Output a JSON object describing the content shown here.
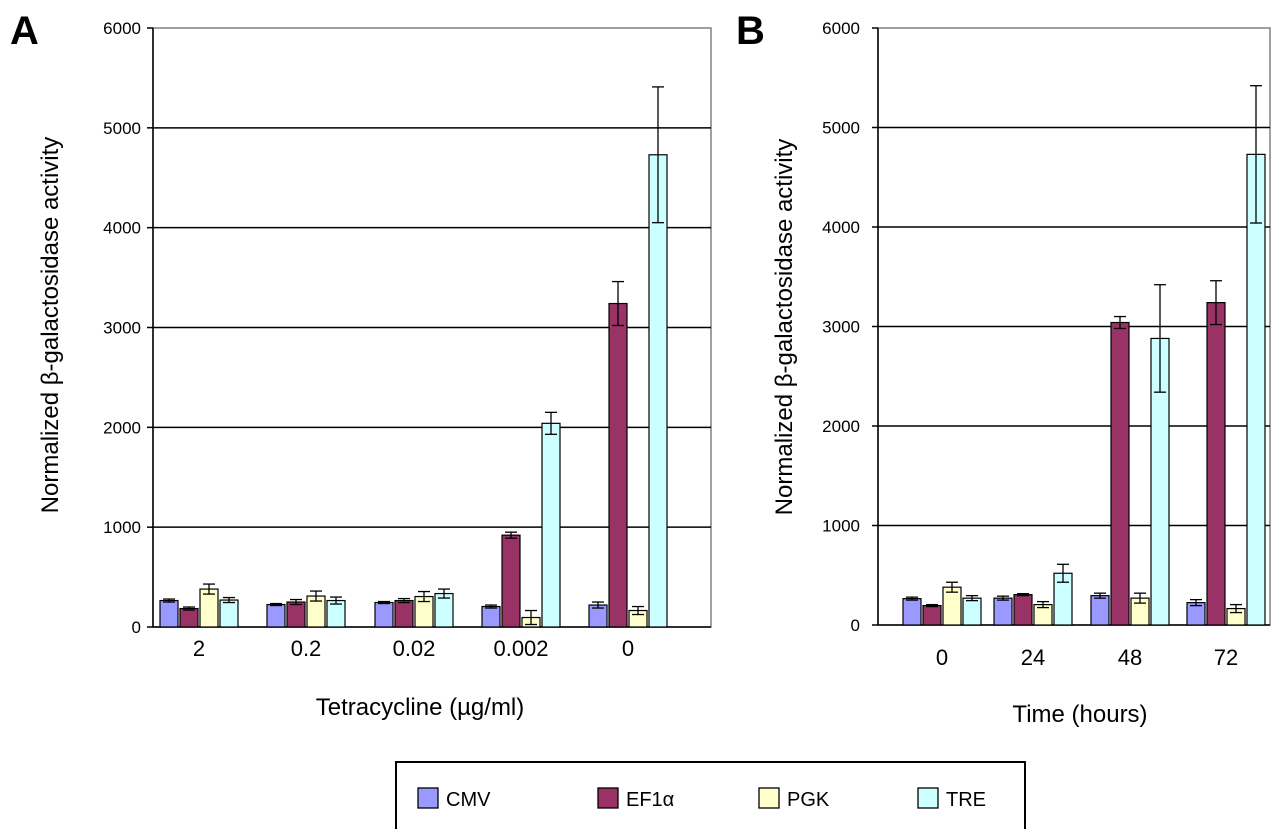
{
  "legend": {
    "items": [
      {
        "label": "CMV",
        "color": "#9999FF"
      },
      {
        "label": "EF1α",
        "color": "#993366"
      },
      {
        "label": "PGK",
        "color": "#FFFFCC"
      },
      {
        "label": "TRE",
        "color": "#CCFFFF"
      }
    ]
  },
  "chart_data": [
    {
      "type": "bar",
      "panel_label": "A",
      "xlabel": "Tetracycline (µg/ml)",
      "ylabel": "Normalized β-galactosidase activity",
      "ylim": [
        0,
        6000
      ],
      "yticks": [
        0,
        1000,
        2000,
        3000,
        4000,
        5000,
        6000
      ],
      "grid": true,
      "categories": [
        "2",
        "0.2",
        "0.02",
        "0.002",
        "0"
      ],
      "series": [
        {
          "name": "CMV",
          "values": [
            265,
            225,
            245,
            205,
            220
          ],
          "errors": [
            15,
            10,
            10,
            15,
            30
          ]
        },
        {
          "name": "EF1α",
          "values": [
            185,
            250,
            265,
            920,
            3240
          ],
          "errors": [
            15,
            25,
            20,
            30,
            220
          ]
        },
        {
          "name": "PGK",
          "values": [
            380,
            310,
            305,
            95,
            165
          ],
          "errors": [
            50,
            50,
            50,
            70,
            40
          ]
        },
        {
          "name": "TRE",
          "values": [
            270,
            265,
            335,
            2040,
            4730
          ],
          "errors": [
            25,
            35,
            45,
            110,
            680
          ]
        }
      ]
    },
    {
      "type": "bar",
      "panel_label": "B",
      "xlabel": "Time (hours)",
      "ylabel": "Normalized β-galactosidase activity",
      "ylim": [
        0,
        6000
      ],
      "yticks": [
        0,
        1000,
        2000,
        3000,
        4000,
        5000,
        6000
      ],
      "grid": true,
      "categories": [
        "0",
        "24",
        "48",
        "72"
      ],
      "series": [
        {
          "name": "CMV",
          "values": [
            265,
            270,
            295,
            225
          ],
          "errors": [
            15,
            20,
            25,
            30
          ]
        },
        {
          "name": "EF1α",
          "values": [
            195,
            305,
            3040,
            3240
          ],
          "errors": [
            10,
            10,
            60,
            220
          ]
        },
        {
          "name": "PGK",
          "values": [
            380,
            205,
            270,
            165
          ],
          "errors": [
            50,
            30,
            50,
            40
          ]
        },
        {
          "name": "TRE",
          "values": [
            270,
            520,
            2880,
            4730
          ],
          "errors": [
            25,
            90,
            540,
            690
          ]
        }
      ]
    }
  ]
}
